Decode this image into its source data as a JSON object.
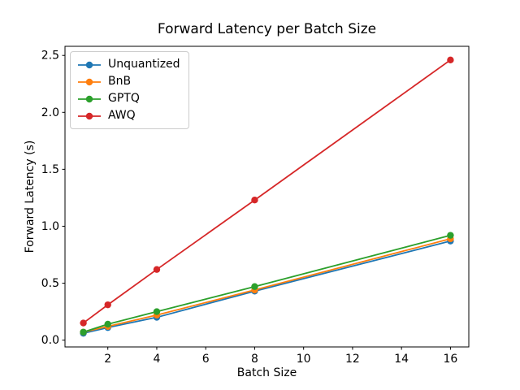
{
  "chart_data": {
    "type": "line",
    "title": "Forward Latency per Batch Size",
    "xlabel": "Batch Size",
    "ylabel": "Forward Latency (s)",
    "x": [
      1,
      2,
      4,
      8,
      16
    ],
    "series": [
      {
        "name": "Unquantized",
        "color": "#1f77b4",
        "values": [
          0.06,
          0.11,
          0.2,
          0.43,
          0.87
        ]
      },
      {
        "name": "BnB",
        "color": "#ff7f0e",
        "values": [
          0.07,
          0.12,
          0.22,
          0.44,
          0.89
        ]
      },
      {
        "name": "GPTQ",
        "color": "#2ca02c",
        "values": [
          0.07,
          0.14,
          0.25,
          0.47,
          0.92
        ]
      },
      {
        "name": "AWQ",
        "color": "#d62728",
        "values": [
          0.15,
          0.31,
          0.62,
          1.23,
          2.46
        ]
      }
    ],
    "xlim": [
      0.25,
      16.75
    ],
    "ylim": [
      -0.06,
      2.58
    ],
    "xticks": {
      "values": [
        2,
        4,
        6,
        8,
        10,
        12,
        14,
        16
      ],
      "labels": [
        "2",
        "4",
        "6",
        "8",
        "10",
        "12",
        "14",
        "16"
      ]
    },
    "yticks": {
      "values": [
        0.0,
        0.5,
        1.0,
        1.5,
        2.0,
        2.5
      ],
      "labels": [
        "0.0",
        "0.5",
        "1.0",
        "1.5",
        "2.0",
        "2.5"
      ]
    },
    "grid": false,
    "legend_position": "upper left",
    "marker": "circle",
    "line_style": "solid",
    "background": "#ffffff",
    "axis_color": "#000000"
  }
}
